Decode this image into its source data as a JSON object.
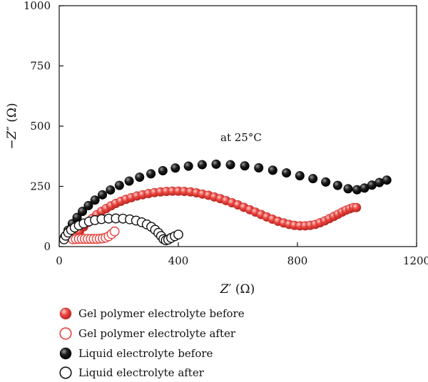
{
  "chart_data": {
    "type": "scatter",
    "xlabel_main": "Z",
    "xlabel_prime": "′",
    "xlabel_unit": " (Ω)",
    "ylabel_sign": "−Z",
    "ylabel_prime": "″",
    "ylabel_unit": " (Ω)",
    "xlim": [
      0,
      1200
    ],
    "ylim": [
      0,
      1000
    ],
    "x_ticks": [
      0,
      400,
      800,
      1200
    ],
    "y_ticks": [
      0,
      250,
      500,
      750,
      1000
    ],
    "annotation": "at 25°C",
    "grid": false,
    "legend_position": "bottom-left",
    "series": [
      {
        "name": "Gel polymer electrolyte before",
        "color": "#e8413c",
        "style": "filled-red",
        "x": [
          55,
          68,
          82,
          96,
          111,
          126,
          142,
          158,
          174,
          190,
          207,
          224,
          242,
          261,
          280,
          300,
          320,
          340,
          360,
          380,
          400,
          420,
          441,
          461,
          481,
          501,
          521,
          541,
          560,
          580,
          600,
          620,
          640,
          659,
          678,
          697,
          716,
          735,
          754,
          772,
          790,
          808,
          826,
          843,
          860,
          876,
          892,
          907,
          922,
          936,
          950,
          963,
          976,
          988,
          998
        ],
        "y": [
          40,
          62,
          82,
          100,
          117,
          132,
          146,
          158,
          169,
          179,
          188,
          196,
          203,
          210,
          215,
          220,
          224,
          227,
          229,
          230,
          230,
          229,
          227,
          223,
          218,
          213,
          206,
          199,
          191,
          182,
          173,
          163,
          153,
          143,
          133,
          123,
          114,
          105,
          98,
          92,
          88,
          86,
          86,
          88,
          92,
          99,
          107,
          116,
          125,
          134,
          143,
          151,
          157,
          162,
          162
        ]
      },
      {
        "name": "Gel polymer electrolyte after",
        "color": "#e8413c",
        "style": "open-red",
        "x": [
          46,
          56,
          66,
          76,
          86,
          96,
          106,
          116,
          126,
          136,
          146,
          156,
          166,
          176,
          186
        ],
        "y": [
          30,
          31,
          32,
          32,
          32,
          32,
          32,
          32,
          32,
          33,
          34,
          37,
          43,
          52,
          63
        ]
      },
      {
        "name": "Liquid electrolyte before",
        "color": "#111111",
        "style": "filled-black",
        "x": [
          18,
          30,
          44,
          60,
          78,
          98,
          120,
          145,
          172,
          202,
          235,
          270,
          308,
          348,
          390,
          434,
          480,
          527,
          575,
          623,
          670,
          717,
          763,
          808,
          852,
          895,
          935,
          970,
          1000,
          1025,
          1050,
          1075,
          1100
        ],
        "y": [
          40,
          68,
          95,
          121,
          146,
          170,
          193,
          215,
          235,
          254,
          272,
          288,
          302,
          315,
          326,
          334,
          340,
          342,
          340,
          335,
          327,
          317,
          306,
          294,
          282,
          268,
          254,
          240,
          236,
          243,
          255,
          266,
          276
        ]
      },
      {
        "name": "Liquid electrolyte after",
        "color": "#111111",
        "style": "open-black",
        "x": [
          16,
          22,
          30,
          40,
          52,
          66,
          82,
          100,
          120,
          142,
          166,
          190,
          214,
          237,
          258,
          277,
          294,
          309,
          322,
          333,
          342,
          350,
          358,
          366,
          376,
          388,
          400
        ],
        "y": [
          30,
          45,
          58,
          69,
          79,
          88,
          96,
          104,
          110,
          114,
          116,
          117,
          116,
          113,
          108,
          101,
          92,
          82,
          70,
          57,
          44,
          31,
          26,
          29,
          36,
          43,
          50
        ]
      }
    ]
  }
}
